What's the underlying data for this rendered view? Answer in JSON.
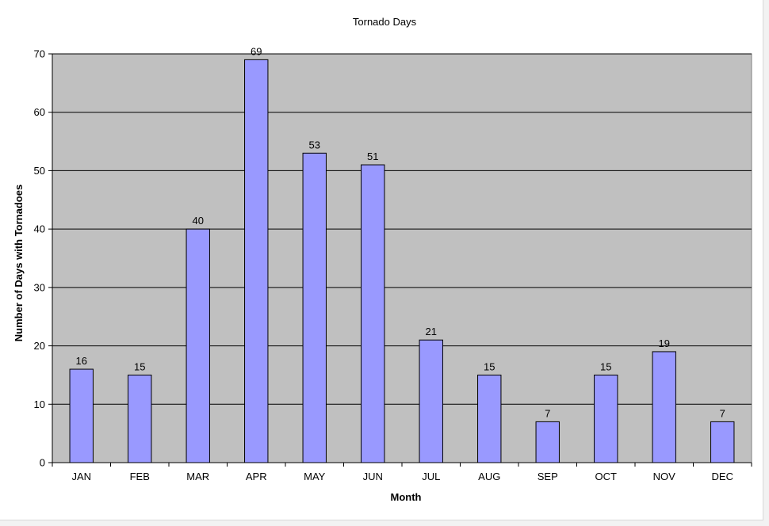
{
  "chart_data": {
    "type": "bar",
    "title": "Tornado Days",
    "xlabel": "Month",
    "ylabel": "Number of Days with Tornadoes",
    "categories": [
      "JAN",
      "FEB",
      "MAR",
      "APR",
      "MAY",
      "JUN",
      "JUL",
      "AUG",
      "SEP",
      "OCT",
      "NOV",
      "DEC"
    ],
    "values": [
      16,
      15,
      40,
      69,
      53,
      51,
      21,
      15,
      7,
      15,
      19,
      7
    ],
    "ylim": [
      0,
      70
    ],
    "yticks": [
      0,
      10,
      20,
      30,
      40,
      50,
      60,
      70
    ],
    "data_labels": true,
    "grid": "horizontal",
    "legend": "none",
    "colors": {
      "bar_fill": "#9999ff",
      "bar_stroke": "#000000",
      "plot_background": "#c0c0c0",
      "gridline": "#000000",
      "page_background": "#ffffff"
    }
  }
}
